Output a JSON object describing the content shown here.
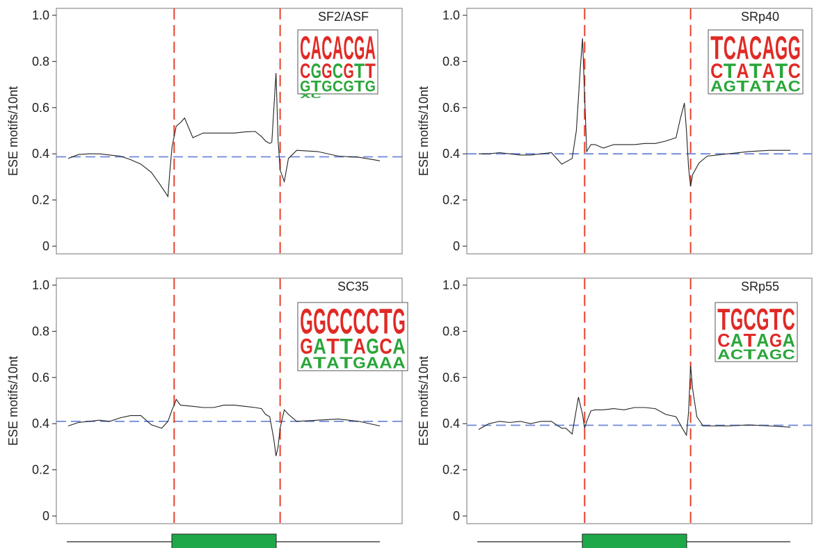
{
  "colors": {
    "boundary_line": "#e8412c",
    "baseline_line": "#6f86d6",
    "series_line": "#222222",
    "exon_box": "#1fa84a",
    "logo_red": "#e02a26",
    "logo_green": "#2aa63a",
    "frame": "#8c8c8c"
  },
  "chart_data": [
    {
      "type": "line",
      "title": "SF2/ASF",
      "ylabel": "ESE motifs/10nt",
      "ylim": [
        0,
        1.0
      ],
      "yticks": [
        "0",
        "0.2",
        "0.4",
        "0.6",
        "0.8",
        "1.0"
      ],
      "baseline": 0.387,
      "boundaries": [
        51,
        102
      ],
      "x_range": [
        0,
        150
      ],
      "logo": {
        "rows": [
          "CACACGA",
          "CGGCGTT",
          "GTGCGTG",
          "XC    "
        ]
      },
      "series": [
        {
          "x": [
            0,
            5,
            10,
            15,
            20,
            25,
            30,
            35,
            40,
            44,
            48,
            49,
            50,
            52,
            54,
            56,
            60,
            65,
            70,
            75,
            80,
            85,
            90,
            93,
            95,
            96,
            97,
            98,
            99,
            100,
            101,
            102,
            104,
            106,
            110,
            120,
            130,
            140,
            150
          ],
          "values": [
            0.38,
            0.397,
            0.4,
            0.4,
            0.395,
            0.39,
            0.375,
            0.355,
            0.32,
            0.27,
            0.215,
            0.33,
            0.43,
            0.52,
            0.535,
            0.555,
            0.47,
            0.49,
            0.49,
            0.49,
            0.49,
            0.495,
            0.497,
            0.475,
            0.455,
            0.45,
            0.445,
            0.45,
            0.6,
            0.75,
            0.46,
            0.33,
            0.28,
            0.38,
            0.415,
            0.41,
            0.39,
            0.385,
            0.37
          ]
        }
      ]
    },
    {
      "type": "line",
      "title": "SRp40",
      "ylabel": "ESE motifs/10nt",
      "ylim": [
        0,
        1.0
      ],
      "yticks": [
        "0",
        "0.2",
        "0.4",
        "0.6",
        "0.8",
        "1.0"
      ],
      "baseline": 0.4,
      "boundaries": [
        51,
        102
      ],
      "x_range": [
        0,
        150
      ],
      "logo": {
        "rows": [
          "TCACAGG",
          "CTATATC",
          "AGTATAC"
        ]
      },
      "series": [
        {
          "x": [
            0,
            5,
            10,
            15,
            20,
            25,
            30,
            35,
            40,
            45,
            47,
            49,
            50,
            51,
            52,
            54,
            56,
            60,
            65,
            70,
            75,
            80,
            85,
            90,
            95,
            97,
            99,
            100,
            101,
            102,
            103,
            106,
            110,
            120,
            130,
            140,
            150
          ],
          "values": [
            0.4,
            0.4,
            0.405,
            0.4,
            0.395,
            0.395,
            0.4,
            0.405,
            0.355,
            0.38,
            0.5,
            0.78,
            0.9,
            0.65,
            0.41,
            0.44,
            0.44,
            0.425,
            0.44,
            0.44,
            0.44,
            0.445,
            0.445,
            0.455,
            0.47,
            0.55,
            0.62,
            0.5,
            0.34,
            0.26,
            0.31,
            0.36,
            0.39,
            0.4,
            0.41,
            0.415,
            0.415
          ]
        }
      ]
    },
    {
      "type": "line",
      "title": "SC35",
      "ylabel": "ESE motifs/10nt",
      "ylim": [
        0,
        1.0
      ],
      "yticks": [
        "0",
        "0.2",
        "0.4",
        "0.6",
        "0.8",
        "1.0"
      ],
      "baseline": 0.41,
      "boundaries": [
        51,
        102
      ],
      "x_range": [
        0,
        150
      ],
      "logo": {
        "rows": [
          "GGCCCCTG",
          "GATTAGCA",
          "ATATGAAA"
        ]
      },
      "series": [
        {
          "x": [
            0,
            5,
            10,
            15,
            20,
            25,
            30,
            35,
            40,
            45,
            48,
            50,
            51,
            52,
            54,
            60,
            65,
            70,
            75,
            80,
            85,
            90,
            93,
            95,
            97,
            99,
            100,
            101,
            102,
            104,
            106,
            110,
            120,
            130,
            140,
            150
          ],
          "values": [
            0.39,
            0.405,
            0.41,
            0.415,
            0.41,
            0.425,
            0.435,
            0.435,
            0.395,
            0.38,
            0.41,
            0.46,
            0.48,
            0.505,
            0.48,
            0.475,
            0.47,
            0.47,
            0.48,
            0.48,
            0.475,
            0.47,
            0.465,
            0.44,
            0.43,
            0.33,
            0.26,
            0.3,
            0.38,
            0.46,
            0.44,
            0.41,
            0.415,
            0.42,
            0.41,
            0.39
          ]
        }
      ]
    },
    {
      "type": "line",
      "title": "SRp55",
      "ylabel": "ESE motifs/10nt",
      "ylim": [
        0,
        1.0
      ],
      "yticks": [
        "0",
        "0.2",
        "0.4",
        "0.6",
        "0.8",
        "1.0"
      ],
      "baseline": 0.393,
      "boundaries": [
        51,
        102
      ],
      "x_range": [
        0,
        150
      ],
      "logo": {
        "rows": [
          "TGCGTC",
          "CATAGA",
          "ACTAGC"
        ]
      },
      "series": [
        {
          "x": [
            0,
            5,
            10,
            15,
            20,
            25,
            30,
            35,
            40,
            42,
            45,
            48,
            50,
            51,
            52,
            54,
            56,
            60,
            65,
            70,
            75,
            80,
            85,
            90,
            95,
            98,
            100,
            101,
            102,
            103,
            105,
            108,
            110,
            120,
            130,
            140,
            150
          ],
          "values": [
            0.375,
            0.4,
            0.41,
            0.405,
            0.41,
            0.4,
            0.41,
            0.41,
            0.38,
            0.38,
            0.355,
            0.515,
            0.44,
            0.38,
            0.41,
            0.455,
            0.46,
            0.46,
            0.465,
            0.46,
            0.47,
            0.47,
            0.465,
            0.44,
            0.43,
            0.38,
            0.35,
            0.45,
            0.65,
            0.55,
            0.43,
            0.39,
            0.39,
            0.39,
            0.395,
            0.39,
            0.385
          ]
        }
      ]
    }
  ]
}
